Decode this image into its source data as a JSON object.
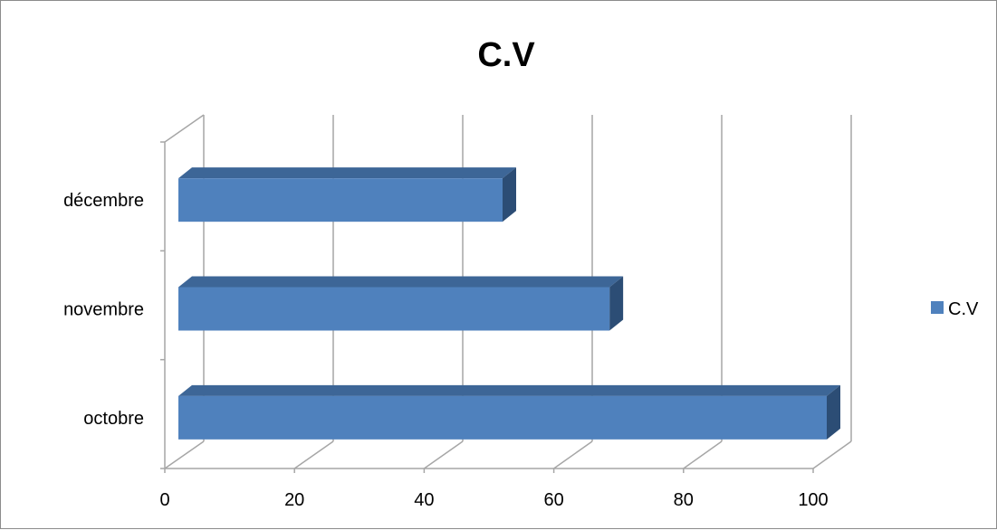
{
  "chart_data": {
    "type": "bar",
    "orientation": "horizontal",
    "title": "C.V",
    "categories": [
      "octobre",
      "novembre",
      "décembre"
    ],
    "series": [
      {
        "name": "C.V",
        "values": [
          100,
          66.5,
          50
        ]
      }
    ],
    "xlim": [
      0,
      100
    ],
    "xticks": [
      "0",
      "20",
      "40",
      "60",
      "80",
      "100"
    ],
    "grid": true,
    "legend": "right",
    "colors": {
      "bar_front": "#4f81bd",
      "bar_top": "#3d6697",
      "bar_side": "#2c4d75",
      "grid": "#a6a6a6"
    }
  }
}
